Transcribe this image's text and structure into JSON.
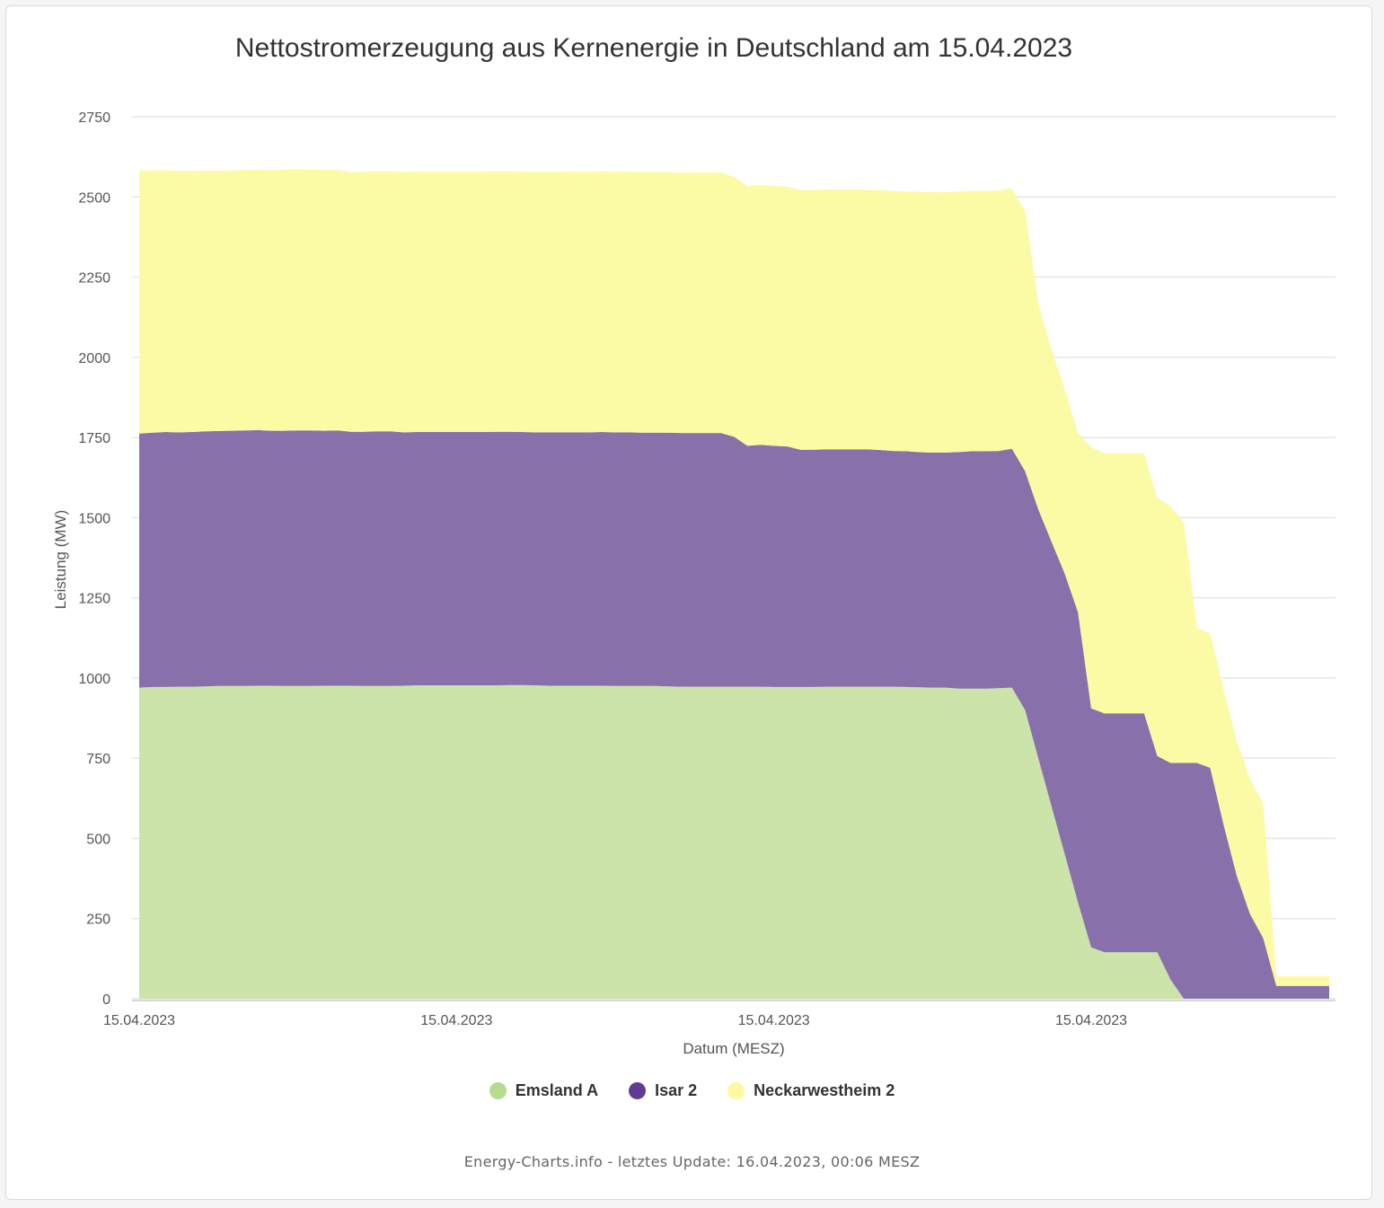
{
  "footer": "Energy-Charts.info - letztes Update: 16.04.2023, 00:06 MESZ",
  "colors": {
    "emsland": "#cce4a9",
    "isar": "#8870ab",
    "neckarwestheim": "#fbfaa5",
    "emsland_legend": "#b5dc8d",
    "isar_legend": "#5f3c93",
    "neckarwestheim_legend": "#fbfaa0"
  },
  "chart_data": {
    "type": "area",
    "stacked": true,
    "title": "Nettostromerzeugung aus Kernenergie in Deutschland am 15.04.2023",
    "xlabel": "Datum (MESZ)",
    "ylabel": "Leistung (MW)",
    "ylim": [
      0,
      2750
    ],
    "yticks": [
      0,
      250,
      500,
      750,
      1000,
      1250,
      1500,
      1750,
      2000,
      2250,
      2500,
      2750
    ],
    "x_tick_labels": [
      "15.04.2023",
      "15.04.2023",
      "15.04.2023",
      "15.04.2023"
    ],
    "x_tick_hours": [
      0,
      6,
      12,
      18
    ],
    "grid": true,
    "legend_position": "bottom",
    "x_hours": [
      0,
      0.25,
      0.5,
      0.75,
      1,
      1.25,
      1.5,
      1.75,
      2,
      2.25,
      2.5,
      2.75,
      3,
      3.25,
      3.5,
      3.75,
      4,
      4.25,
      4.5,
      4.75,
      5,
      5.25,
      5.5,
      5.75,
      6,
      6.25,
      6.5,
      6.75,
      7,
      7.25,
      7.5,
      7.75,
      8,
      8.25,
      8.5,
      8.75,
      9,
      9.25,
      9.5,
      9.75,
      10,
      10.25,
      10.5,
      10.75,
      11,
      11.25,
      11.5,
      11.75,
      12,
      12.25,
      12.5,
      12.75,
      13,
      13.25,
      13.5,
      13.75,
      14,
      14.25,
      14.5,
      14.75,
      15,
      15.25,
      15.5,
      15.75,
      16,
      16.25,
      16.5,
      16.75,
      17,
      17.25,
      17.5,
      17.75,
      18,
      18.25,
      18.5,
      18.75,
      19,
      19.25,
      19.5,
      19.75,
      20,
      20.25,
      20.5,
      20.75,
      21,
      21.25,
      21.5,
      21.75,
      22,
      22.25,
      22.5
    ],
    "series": [
      {
        "name": "Emsland A",
        "values": [
          970,
          972,
          972,
          973,
          973,
          974,
          975,
          975,
          975,
          976,
          976,
          975,
          975,
          975,
          976,
          976,
          976,
          975,
          975,
          975,
          976,
          977,
          977,
          977,
          977,
          977,
          977,
          977,
          978,
          978,
          977,
          976,
          976,
          976,
          976,
          976,
          975,
          975,
          975,
          975,
          974,
          973,
          973,
          973,
          973,
          973,
          973,
          973,
          972,
          972,
          972,
          972,
          973,
          973,
          973,
          973,
          973,
          973,
          972,
          971,
          970,
          970,
          967,
          967,
          967,
          968,
          970,
          900,
          750,
          600,
          450,
          300,
          160,
          145,
          145,
          145,
          145,
          145,
          60,
          0,
          0,
          0,
          0,
          0,
          0,
          0,
          0,
          0,
          0,
          0,
          0
        ]
      },
      {
        "name": "Isar 2",
        "values": [
          792,
          793,
          795,
          793,
          794,
          795,
          795,
          796,
          797,
          797,
          795,
          796,
          797,
          797,
          795,
          796,
          792,
          793,
          794,
          794,
          790,
          790,
          790,
          790,
          790,
          790,
          790,
          791,
          790,
          789,
          789,
          790,
          790,
          790,
          790,
          791,
          791,
          791,
          790,
          790,
          791,
          791,
          791,
          791,
          791,
          779,
          751,
          754,
          752,
          750,
          740,
          740,
          740,
          740,
          740,
          740,
          738,
          735,
          735,
          733,
          733,
          733,
          738,
          740,
          740,
          740,
          745,
          745,
          776,
          825,
          875,
          905,
          745,
          745,
          745,
          745,
          745,
          612,
          675,
          735,
          735,
          720,
          545,
          385,
          265,
          190,
          40,
          40,
          40,
          40,
          40
        ]
      },
      {
        "name": "Neckarwestheim 2",
        "values": [
          820,
          818,
          816,
          815,
          814,
          813,
          812,
          812,
          812,
          812,
          812,
          814,
          814,
          813,
          813,
          812,
          810,
          811,
          811,
          811,
          812,
          812,
          812,
          812,
          812,
          812,
          812,
          812,
          812,
          812,
          812,
          812,
          813,
          813,
          813,
          813,
          813,
          813,
          813,
          813,
          813,
          812,
          812,
          812,
          812,
          810,
          810,
          810,
          810,
          810,
          810,
          810,
          810,
          810,
          810,
          810,
          810,
          810,
          810,
          812,
          812,
          812,
          812,
          812,
          812,
          812,
          812,
          810,
          640,
          600,
          575,
          560,
          815,
          810,
          810,
          810,
          810,
          805,
          800,
          750,
          420,
          420,
          420,
          420,
          420,
          420,
          30,
          30,
          30,
          30,
          30
        ]
      }
    ]
  }
}
